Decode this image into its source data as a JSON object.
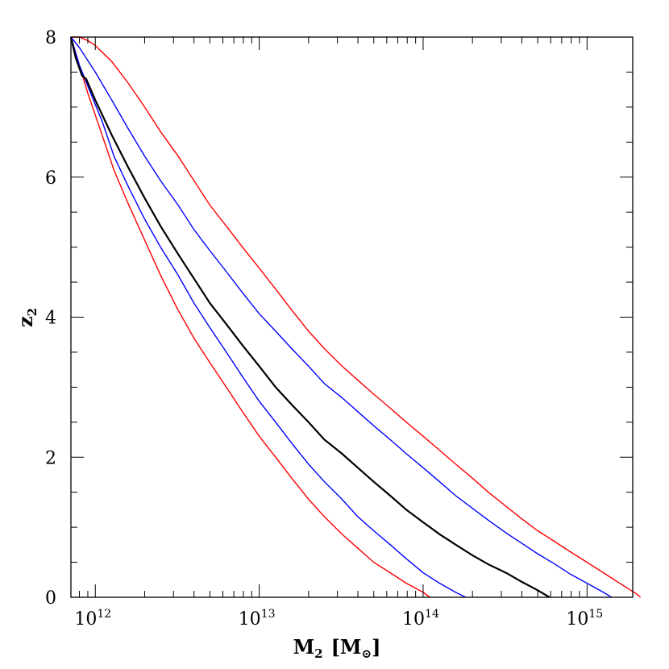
{
  "chart_data": {
    "type": "line",
    "xlabel": {
      "main": "M",
      "sub": "2",
      "unit": "[M",
      "unit_sub": "⊙",
      "unit_close": "]"
    },
    "ylabel": {
      "main": "z",
      "sub": "2"
    },
    "x_scale": "log",
    "xlim": [
      710000000000.0,
      1900000000000000.0
    ],
    "ylim": [
      0,
      8
    ],
    "x_ticks": [
      {
        "value": 1000000000000.0,
        "base": "10",
        "exp": "12"
      },
      {
        "value": 10000000000000.0,
        "base": "10",
        "exp": "13"
      },
      {
        "value": 100000000000000.0,
        "base": "10",
        "exp": "14"
      },
      {
        "value": 1000000000000000.0,
        "base": "10",
        "exp": "15"
      }
    ],
    "y_ticks": [
      {
        "value": 0,
        "label": "0"
      },
      {
        "value": 2,
        "label": "2"
      },
      {
        "value": 4,
        "label": "4"
      },
      {
        "value": 6,
        "label": "6"
      },
      {
        "value": 8,
        "label": "8"
      }
    ],
    "grid": false,
    "series": [
      {
        "color": "#ff0000",
        "points": [
          [
            710000000000.0,
            8.0
          ],
          [
            800000000000.0,
            7.6
          ],
          [
            900000000000.0,
            7.2
          ],
          [
            1100000000000.0,
            6.6
          ],
          [
            1300000000000.0,
            6.1
          ],
          [
            1600000000000.0,
            5.6
          ],
          [
            2000000000000.0,
            5.1
          ],
          [
            2500000000000.0,
            4.6
          ],
          [
            3200000000000.0,
            4.1
          ],
          [
            4000000000000.0,
            3.7
          ],
          [
            5000000000000.0,
            3.35
          ],
          [
            6300000000000.0,
            3.0
          ],
          [
            7900000000000.0,
            2.65
          ],
          [
            10000000000000.0,
            2.3
          ],
          [
            12600000000000.0,
            2.0
          ],
          [
            15800000000000.0,
            1.7
          ],
          [
            20000000000000.0,
            1.4
          ],
          [
            25000000000000.0,
            1.15
          ],
          [
            32000000000000.0,
            0.9
          ],
          [
            40000000000000.0,
            0.7
          ],
          [
            50000000000000.0,
            0.5
          ],
          [
            63000000000000.0,
            0.35
          ],
          [
            79000000000000.0,
            0.2
          ],
          [
            100000000000000.0,
            0.07
          ],
          [
            110000000000000.0,
            0.0
          ]
        ]
      },
      {
        "color": "#0000ff",
        "points": [
          [
            710000000000.0,
            8.0
          ],
          [
            800000000000.0,
            7.6
          ],
          [
            900000000000.0,
            7.3
          ],
          [
            1100000000000.0,
            6.8
          ],
          [
            1300000000000.0,
            6.3
          ],
          [
            1600000000000.0,
            5.85
          ],
          [
            2000000000000.0,
            5.4
          ],
          [
            2500000000000.0,
            5.0
          ],
          [
            3200000000000.0,
            4.6
          ],
          [
            4000000000000.0,
            4.2
          ],
          [
            5000000000000.0,
            3.85
          ],
          [
            6300000000000.0,
            3.5
          ],
          [
            7900000000000.0,
            3.15
          ],
          [
            10000000000000.0,
            2.8
          ],
          [
            12600000000000.0,
            2.5
          ],
          [
            15800000000000.0,
            2.2
          ],
          [
            20000000000000.0,
            1.9
          ],
          [
            25000000000000.0,
            1.65
          ],
          [
            32000000000000.0,
            1.4
          ],
          [
            40000000000000.0,
            1.15
          ],
          [
            50000000000000.0,
            0.95
          ],
          [
            63000000000000.0,
            0.75
          ],
          [
            79000000000000.0,
            0.55
          ],
          [
            100000000000000.0,
            0.35
          ],
          [
            126000000000000.0,
            0.2
          ],
          [
            158000000000000.0,
            0.07
          ],
          [
            182000000000000.0,
            0.0
          ]
        ]
      },
      {
        "color": "#000000",
        "points": [
          [
            710000000000.0,
            8.0
          ],
          [
            760000000000.0,
            7.7
          ],
          [
            830000000000.0,
            7.45
          ],
          [
            880000000000.0,
            7.4
          ],
          [
            1000000000000.0,
            7.1
          ],
          [
            1260000000000.0,
            6.6
          ],
          [
            1580000000000.0,
            6.15
          ],
          [
            2000000000000.0,
            5.7
          ],
          [
            2500000000000.0,
            5.3
          ],
          [
            3200000000000.0,
            4.9
          ],
          [
            4000000000000.0,
            4.55
          ],
          [
            5000000000000.0,
            4.2
          ],
          [
            6300000000000.0,
            3.9
          ],
          [
            7900000000000.0,
            3.6
          ],
          [
            10000000000000.0,
            3.3
          ],
          [
            12600000000000.0,
            3.0
          ],
          [
            15800000000000.0,
            2.75
          ],
          [
            20000000000000.0,
            2.5
          ],
          [
            25000000000000.0,
            2.25
          ],
          [
            32000000000000.0,
            2.05
          ],
          [
            40000000000000.0,
            1.85
          ],
          [
            50000000000000.0,
            1.65
          ],
          [
            63000000000000.0,
            1.45
          ],
          [
            79000000000000.0,
            1.25
          ],
          [
            100000000000000.0,
            1.07
          ],
          [
            126000000000000.0,
            0.9
          ],
          [
            158000000000000.0,
            0.75
          ],
          [
            200000000000000.0,
            0.6
          ],
          [
            250000000000000.0,
            0.47
          ],
          [
            320000000000000.0,
            0.35
          ],
          [
            400000000000000.0,
            0.22
          ],
          [
            500000000000000.0,
            0.1
          ],
          [
            590000000000000.0,
            0.0
          ]
        ]
      },
      {
        "color": "#0000ff",
        "points": [
          [
            710000000000.0,
            8.0
          ],
          [
            800000000000.0,
            7.85
          ],
          [
            1000000000000.0,
            7.5
          ],
          [
            1260000000000.0,
            7.1
          ],
          [
            1580000000000.0,
            6.7
          ],
          [
            2000000000000.0,
            6.3
          ],
          [
            2500000000000.0,
            5.95
          ],
          [
            3200000000000.0,
            5.6
          ],
          [
            4000000000000.0,
            5.25
          ],
          [
            5000000000000.0,
            4.95
          ],
          [
            6300000000000.0,
            4.65
          ],
          [
            7900000000000.0,
            4.35
          ],
          [
            10000000000000.0,
            4.05
          ],
          [
            12600000000000.0,
            3.8
          ],
          [
            15800000000000.0,
            3.55
          ],
          [
            20000000000000.0,
            3.3
          ],
          [
            25000000000000.0,
            3.05
          ],
          [
            32000000000000.0,
            2.85
          ],
          [
            40000000000000.0,
            2.65
          ],
          [
            50000000000000.0,
            2.45
          ],
          [
            63000000000000.0,
            2.25
          ],
          [
            79000000000000.0,
            2.05
          ],
          [
            100000000000000.0,
            1.85
          ],
          [
            126000000000000.0,
            1.65
          ],
          [
            158000000000000.0,
            1.45
          ],
          [
            200000000000000.0,
            1.27
          ],
          [
            250000000000000.0,
            1.1
          ],
          [
            320000000000000.0,
            0.92
          ],
          [
            400000000000000.0,
            0.77
          ],
          [
            500000000000000.0,
            0.62
          ],
          [
            630000000000000.0,
            0.48
          ],
          [
            790000000000000.0,
            0.33
          ],
          [
            1000000000000000.0,
            0.2
          ],
          [
            1260000000000000.0,
            0.07
          ],
          [
            1410000000000000.0,
            0.0
          ]
        ]
      },
      {
        "color": "#ff0000",
        "points": [
          [
            710000000000.0,
            8.0
          ],
          [
            800000000000.0,
            8.0
          ],
          [
            900000000000.0,
            7.95
          ],
          [
            1000000000000.0,
            7.88
          ],
          [
            1260000000000.0,
            7.65
          ],
          [
            1580000000000.0,
            7.35
          ],
          [
            2000000000000.0,
            7.0
          ],
          [
            2500000000000.0,
            6.65
          ],
          [
            3200000000000.0,
            6.3
          ],
          [
            4000000000000.0,
            5.95
          ],
          [
            5000000000000.0,
            5.6
          ],
          [
            6300000000000.0,
            5.3
          ],
          [
            7900000000000.0,
            5.0
          ],
          [
            10000000000000.0,
            4.7
          ],
          [
            12600000000000.0,
            4.4
          ],
          [
            15800000000000.0,
            4.1
          ],
          [
            20000000000000.0,
            3.8
          ],
          [
            25000000000000.0,
            3.55
          ],
          [
            32000000000000.0,
            3.3
          ],
          [
            40000000000000.0,
            3.1
          ],
          [
            50000000000000.0,
            2.9
          ],
          [
            63000000000000.0,
            2.7
          ],
          [
            79000000000000.0,
            2.5
          ],
          [
            100000000000000.0,
            2.3
          ],
          [
            126000000000000.0,
            2.1
          ],
          [
            158000000000000.0,
            1.9
          ],
          [
            200000000000000.0,
            1.7
          ],
          [
            250000000000000.0,
            1.5
          ],
          [
            320000000000000.0,
            1.3
          ],
          [
            400000000000000.0,
            1.12
          ],
          [
            500000000000000.0,
            0.95
          ],
          [
            630000000000000.0,
            0.8
          ],
          [
            790000000000000.0,
            0.65
          ],
          [
            1000000000000000.0,
            0.5
          ],
          [
            1260000000000000.0,
            0.35
          ],
          [
            1580000000000000.0,
            0.2
          ],
          [
            2000000000000000.0,
            0.05
          ],
          [
            2120000000000000.0,
            0.0
          ]
        ]
      }
    ]
  }
}
